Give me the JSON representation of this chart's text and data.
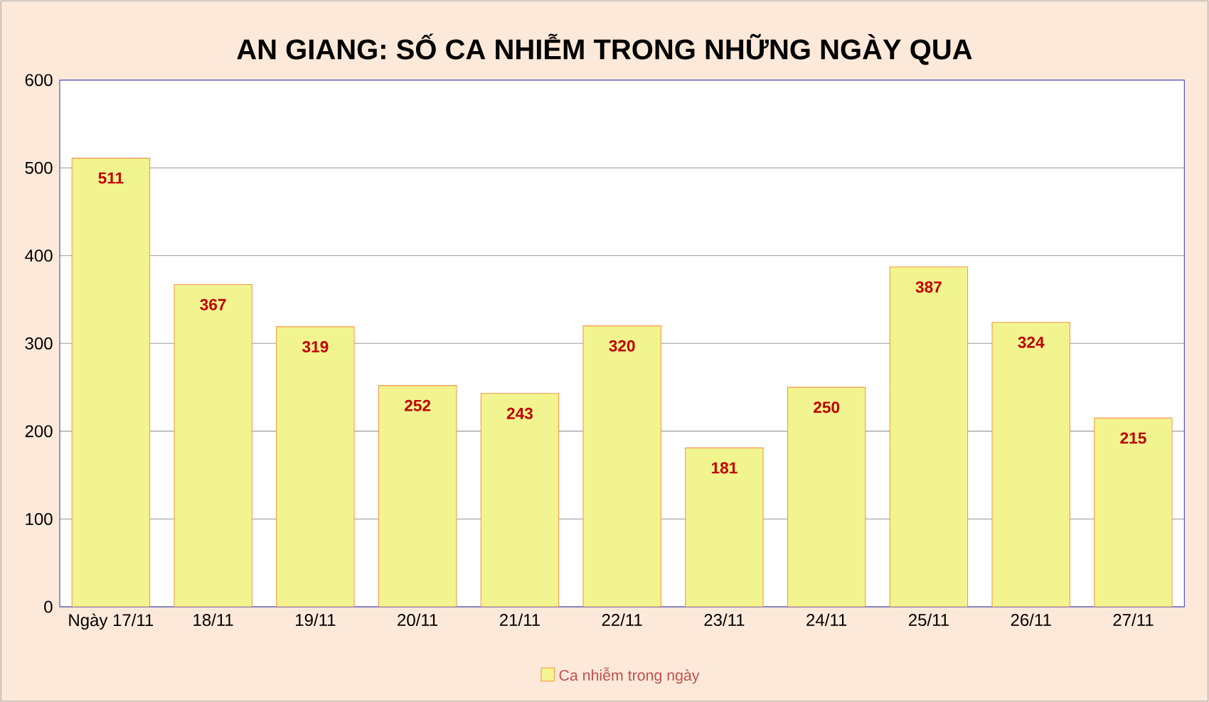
{
  "chart_data": {
    "type": "bar",
    "title": "AN GIANG: SỐ CA NHIỄM TRONG NHỮNG NGÀY QUA",
    "categories": [
      "Ngày 17/11",
      "18/11",
      "19/11",
      "20/11",
      "21/11",
      "22/11",
      "23/11",
      "24/11",
      "25/11",
      "26/11",
      "27/11"
    ],
    "series": [
      {
        "name": "Ca nhiễm trong ngày",
        "color": "#f2f58f",
        "values": [
          511,
          367,
          319,
          252,
          243,
          320,
          181,
          250,
          387,
          324,
          215
        ]
      }
    ],
    "ylim": [
      0,
      600
    ],
    "yticks": [
      0,
      100,
      200,
      300,
      400,
      500,
      600
    ],
    "grid": "y",
    "legend": "bottom",
    "data_labels": true
  }
}
